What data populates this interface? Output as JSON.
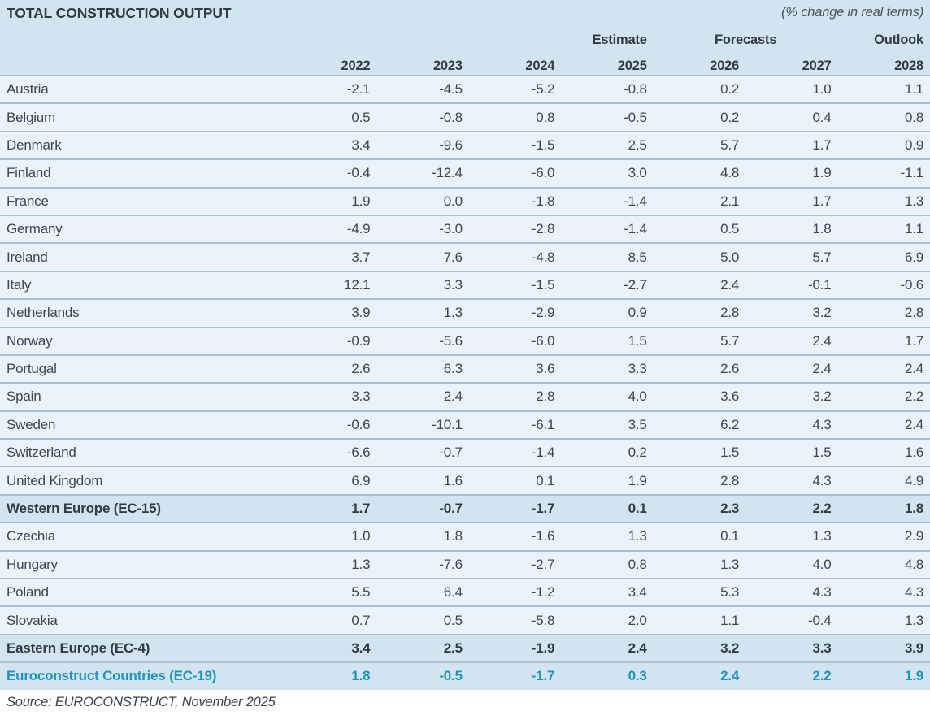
{
  "title": "TOTAL CONSTRUCTION OUTPUT",
  "subtitle": "(% change in real terms)",
  "header": {
    "estimate_label": "Estimate",
    "forecasts_label": "Forecasts",
    "outlook_label": "Outlook",
    "years": [
      "2022",
      "2023",
      "2024",
      "2025",
      "2026",
      "2027",
      "2028"
    ]
  },
  "chart_data": {
    "type": "table",
    "title": "TOTAL CONSTRUCTION OUTPUT",
    "unit": "% change in real terms",
    "columns": [
      "2022",
      "2023",
      "2024",
      "2025",
      "2026",
      "2027",
      "2028"
    ],
    "column_groups": [
      {
        "label": "Estimate",
        "columns": [
          "2025"
        ]
      },
      {
        "label": "Forecasts",
        "columns": [
          "2026",
          "2027"
        ]
      },
      {
        "label": "Outlook",
        "columns": [
          "2028"
        ]
      }
    ],
    "rows": [
      {
        "name": "Austria",
        "style": "normal",
        "values": [
          -2.1,
          -4.5,
          -5.2,
          -0.8,
          0.2,
          1.0,
          1.1
        ]
      },
      {
        "name": "Belgium",
        "style": "normal",
        "values": [
          0.5,
          -0.8,
          0.8,
          -0.5,
          0.2,
          0.4,
          0.8
        ]
      },
      {
        "name": "Denmark",
        "style": "normal",
        "values": [
          3.4,
          -9.6,
          -1.5,
          2.5,
          5.7,
          1.7,
          0.9
        ]
      },
      {
        "name": "Finland",
        "style": "normal",
        "values": [
          -0.4,
          -12.4,
          -6.0,
          3.0,
          4.8,
          1.9,
          -1.1
        ]
      },
      {
        "name": "France",
        "style": "normal",
        "values": [
          1.9,
          0.0,
          -1.8,
          -1.4,
          2.1,
          1.7,
          1.3
        ]
      },
      {
        "name": "Germany",
        "style": "normal",
        "values": [
          -4.9,
          -3.0,
          -2.8,
          -1.4,
          0.5,
          1.8,
          1.1
        ]
      },
      {
        "name": "Ireland",
        "style": "normal",
        "values": [
          3.7,
          7.6,
          -4.8,
          8.5,
          5.0,
          5.7,
          6.9
        ]
      },
      {
        "name": "Italy",
        "style": "normal",
        "values": [
          12.1,
          3.3,
          -1.5,
          -2.7,
          2.4,
          -0.1,
          -0.6
        ]
      },
      {
        "name": "Netherlands",
        "style": "normal",
        "values": [
          3.9,
          1.3,
          -2.9,
          0.9,
          2.8,
          3.2,
          2.8
        ]
      },
      {
        "name": "Norway",
        "style": "normal",
        "values": [
          -0.9,
          -5.6,
          -6.0,
          1.5,
          5.7,
          2.4,
          1.7
        ]
      },
      {
        "name": "Portugal",
        "style": "normal",
        "values": [
          2.6,
          6.3,
          3.6,
          3.3,
          2.6,
          2.4,
          2.4
        ]
      },
      {
        "name": "Spain",
        "style": "normal",
        "values": [
          3.3,
          2.4,
          2.8,
          4.0,
          3.6,
          3.2,
          2.2
        ]
      },
      {
        "name": "Sweden",
        "style": "normal",
        "values": [
          -0.6,
          -10.1,
          -6.1,
          3.5,
          6.2,
          4.3,
          2.4
        ]
      },
      {
        "name": "Switzerland",
        "style": "normal",
        "values": [
          -6.6,
          -0.7,
          -1.4,
          0.2,
          1.5,
          1.5,
          1.6
        ]
      },
      {
        "name": "United Kingdom",
        "style": "normal",
        "values": [
          6.9,
          1.6,
          0.1,
          1.9,
          2.8,
          4.3,
          4.9
        ]
      },
      {
        "name": "Western Europe (EC-15)",
        "style": "aggregate",
        "values": [
          1.7,
          -0.7,
          -1.7,
          0.1,
          2.3,
          2.2,
          1.8
        ]
      },
      {
        "name": "Czechia",
        "style": "normal",
        "values": [
          1.0,
          1.8,
          -1.6,
          1.3,
          0.1,
          1.3,
          2.9
        ]
      },
      {
        "name": "Hungary",
        "style": "normal",
        "values": [
          1.3,
          -7.6,
          -2.7,
          0.8,
          1.3,
          4.0,
          4.8
        ]
      },
      {
        "name": "Poland",
        "style": "normal",
        "values": [
          5.5,
          6.4,
          -1.2,
          3.4,
          5.3,
          4.3,
          4.3
        ]
      },
      {
        "name": "Slovakia",
        "style": "normal",
        "values": [
          0.7,
          0.5,
          -5.8,
          2.0,
          1.1,
          -0.4,
          1.3
        ]
      },
      {
        "name": "Eastern Europe (EC-4)",
        "style": "aggregate",
        "values": [
          3.4,
          2.5,
          -1.9,
          2.4,
          3.2,
          3.3,
          3.9
        ]
      },
      {
        "name": "Euroconstruct Countries (EC-19)",
        "style": "total",
        "values": [
          1.8,
          -0.5,
          -1.7,
          0.3,
          2.4,
          2.2,
          1.9
        ]
      }
    ]
  },
  "footer": {
    "source": "Source: EUROCONSTRUCT, November 2025"
  },
  "colors": {
    "header_bg": "#d2e4ef",
    "row_bg": "#eaf3f9",
    "aggregate_row_bg": "#d2e4ef",
    "separator": "#aac2cf",
    "text": "#3f464f",
    "bold_text": "#333a43",
    "accent_teal": "#1a96bd"
  }
}
